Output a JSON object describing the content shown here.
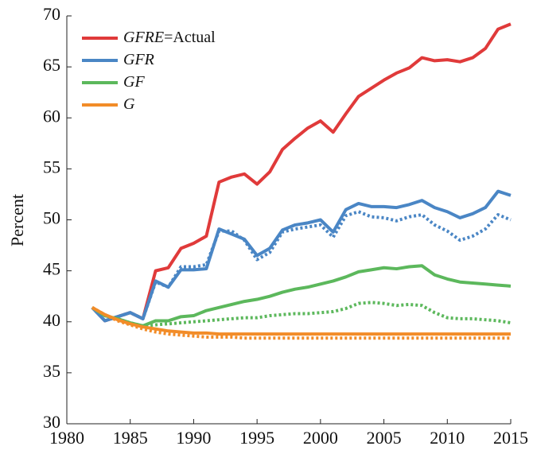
{
  "chart_data": {
    "type": "line",
    "y_label": "Percent",
    "x": [
      1982,
      1983,
      1984,
      1985,
      1986,
      1987,
      1988,
      1989,
      1990,
      1991,
      1992,
      1993,
      1994,
      1995,
      1996,
      1997,
      1998,
      1999,
      2000,
      2001,
      2002,
      2003,
      2004,
      2005,
      2006,
      2007,
      2008,
      2009,
      2010,
      2011,
      2012,
      2013,
      2014,
      2015
    ],
    "xlim": [
      1980,
      2015
    ],
    "xticks": [
      1980,
      1985,
      1990,
      1995,
      2000,
      2005,
      2010,
      2015
    ],
    "ylim": [
      30,
      70
    ],
    "yticks": [
      30,
      35,
      40,
      45,
      50,
      55,
      60,
      65,
      70
    ],
    "grid": false,
    "legend": "upper left",
    "series": [
      {
        "name": "GFRE=Actual",
        "color": "#e03a3a",
        "style": "solid",
        "values": [
          41.4,
          40.1,
          40.5,
          40.9,
          40.3,
          45.0,
          45.3,
          47.2,
          47.7,
          48.4,
          53.7,
          54.2,
          54.5,
          53.5,
          54.7,
          56.9,
          58.0,
          59.0,
          59.7,
          58.6,
          60.4,
          62.1,
          62.9,
          63.7,
          64.4,
          64.9,
          65.9,
          65.6,
          65.7,
          65.5,
          65.9,
          66.8,
          68.7,
          69.2
        ]
      },
      {
        "name": "GFR",
        "color": "#4a86c5",
        "style": "solid",
        "values": [
          41.4,
          40.1,
          40.5,
          40.9,
          40.3,
          44.0,
          43.4,
          45.1,
          45.1,
          45.2,
          49.1,
          48.6,
          48.1,
          46.5,
          47.2,
          49.0,
          49.5,
          49.7,
          50.0,
          48.8,
          51.0,
          51.6,
          51.3,
          51.3,
          51.2,
          51.5,
          51.9,
          51.2,
          50.8,
          50.2,
          50.6,
          51.2,
          52.8,
          52.4
        ]
      },
      {
        "color": "#4a86c5",
        "style": "dotted",
        "values": [
          41.4,
          40.1,
          40.5,
          40.9,
          40.3,
          43.9,
          43.4,
          45.4,
          45.4,
          45.6,
          48.9,
          48.9,
          48.0,
          46.1,
          46.8,
          48.8,
          49.1,
          49.3,
          49.5,
          48.3,
          50.4,
          50.8,
          50.3,
          50.2,
          49.9,
          50.3,
          50.5,
          49.5,
          48.9,
          48.0,
          48.4,
          49.1,
          50.5,
          50.0
        ]
      },
      {
        "name": "GF",
        "color": "#5cb85c",
        "style": "solid",
        "values": [
          41.4,
          40.6,
          40.3,
          39.9,
          39.6,
          40.1,
          40.1,
          40.5,
          40.6,
          41.1,
          41.4,
          41.7,
          42.0,
          42.2,
          42.5,
          42.9,
          43.2,
          43.4,
          43.7,
          44.0,
          44.4,
          44.9,
          45.1,
          45.3,
          45.2,
          45.4,
          45.5,
          44.6,
          44.2,
          43.9,
          43.8,
          43.7,
          43.6,
          43.5
        ]
      },
      {
        "color": "#5cb85c",
        "style": "dotted",
        "values": [
          41.4,
          40.6,
          40.3,
          39.9,
          39.6,
          39.7,
          39.8,
          39.9,
          40.0,
          40.1,
          40.2,
          40.3,
          40.4,
          40.4,
          40.6,
          40.7,
          40.8,
          40.8,
          40.9,
          41.0,
          41.3,
          41.8,
          41.9,
          41.8,
          41.6,
          41.7,
          41.6,
          40.9,
          40.4,
          40.3,
          40.3,
          40.2,
          40.1,
          39.9
        ]
      },
      {
        "name": "G",
        "color": "#f28c28",
        "style": "solid",
        "values": [
          41.4,
          40.7,
          40.2,
          39.8,
          39.5,
          39.3,
          39.1,
          39.0,
          38.9,
          38.9,
          38.8,
          38.8,
          38.8,
          38.8,
          38.8,
          38.8,
          38.8,
          38.8,
          38.8,
          38.8,
          38.8,
          38.8,
          38.8,
          38.8,
          38.8,
          38.8,
          38.8,
          38.8,
          38.8,
          38.8,
          38.8,
          38.8,
          38.8,
          38.8
        ]
      },
      {
        "color": "#f28c28",
        "style": "dotted",
        "values": [
          41.4,
          40.7,
          40.1,
          39.7,
          39.3,
          39.0,
          38.8,
          38.7,
          38.6,
          38.5,
          38.5,
          38.5,
          38.4,
          38.4,
          38.4,
          38.4,
          38.4,
          38.4,
          38.4,
          38.4,
          38.4,
          38.4,
          38.4,
          38.4,
          38.4,
          38.4,
          38.4,
          38.4,
          38.4,
          38.4,
          38.4,
          38.4,
          38.4,
          38.4
        ]
      }
    ]
  }
}
